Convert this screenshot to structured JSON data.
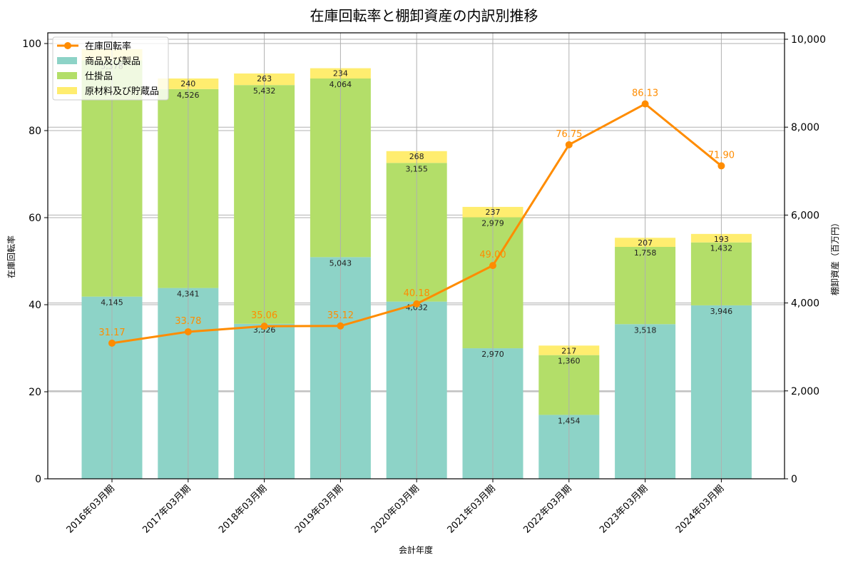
{
  "title": "在庫回転率と棚卸資産の内訳別推移",
  "chart_data": {
    "type": "bar+line",
    "title": "在庫回転率と棚卸資産の内訳別推移",
    "xlabel": "会計年度",
    "ylabel_left": "在庫回転率",
    "ylabel_right": "棚卸資産（百万円）",
    "ylim_left": [
      0,
      103
    ],
    "ylim_right": [
      0,
      10300
    ],
    "left_ticks": [
      0,
      20,
      40,
      60,
      80,
      100
    ],
    "right_ticks": [
      "0",
      "2,000",
      "4,000",
      "6,000",
      "8,000",
      "10,000"
    ],
    "grid": true,
    "legend_position": "upper left",
    "categories": [
      "2016年03月期",
      "2017年03月期",
      "2018年03月期",
      "2019年03月期",
      "2020年03月期",
      "2021年03月期",
      "2022年03月期",
      "2023年03月期",
      "2024年03月期"
    ],
    "series": [
      {
        "name": "商品及び製品",
        "type": "stacked-bar",
        "axis": "right",
        "color": "#8dd3c7",
        "values": [
          4145,
          4341,
          3526,
          5043,
          4032,
          2970,
          1454,
          3518,
          3946
        ]
      },
      {
        "name": "仕掛品",
        "type": "stacked-bar",
        "axis": "right",
        "color": "#b3de69",
        "values": [
          5378,
          4526,
          5432,
          4064,
          3155,
          2979,
          1360,
          1758,
          1432
        ]
      },
      {
        "name": "原材料及び貯蔵品",
        "type": "stacked-bar",
        "axis": "right",
        "color": "#ffed6f",
        "values": [
          250,
          240,
          263,
          234,
          268,
          237,
          217,
          207,
          193
        ]
      },
      {
        "name": "在庫回転率",
        "type": "line",
        "axis": "left",
        "color": "#ff8c00",
        "values": [
          31.17,
          33.78,
          35.06,
          35.12,
          40.18,
          49.0,
          76.75,
          86.13,
          71.9
        ]
      }
    ],
    "labels": {
      "product": [
        "4,145",
        "4,341",
        "3,526",
        "5,043",
        "4,032",
        "2,970",
        "1,454",
        "3,518",
        "3,946"
      ],
      "wip": [
        "5,378",
        "4,526",
        "5,432",
        "4,064",
        "3,155",
        "2,979",
        "1,360",
        "1,758",
        "1,432"
      ],
      "raw": [
        "",
        "240",
        "263",
        "234",
        "268",
        "237",
        "217",
        "207",
        "193"
      ],
      "ratio": [
        "31.17",
        "33.78",
        "35.06",
        "35.12",
        "40.18",
        "49.00",
        "76.75",
        "86.13",
        "71.90"
      ]
    }
  },
  "legend": [
    {
      "label": "在庫回転率",
      "kind": "line",
      "color": "#ff8c00"
    },
    {
      "label": "商品及び製品",
      "kind": "patch",
      "color": "#8dd3c7"
    },
    {
      "label": "仕掛品",
      "kind": "patch",
      "color": "#b3de69"
    },
    {
      "label": "原材料及び貯蔵品",
      "kind": "patch",
      "color": "#ffed6f"
    }
  ]
}
